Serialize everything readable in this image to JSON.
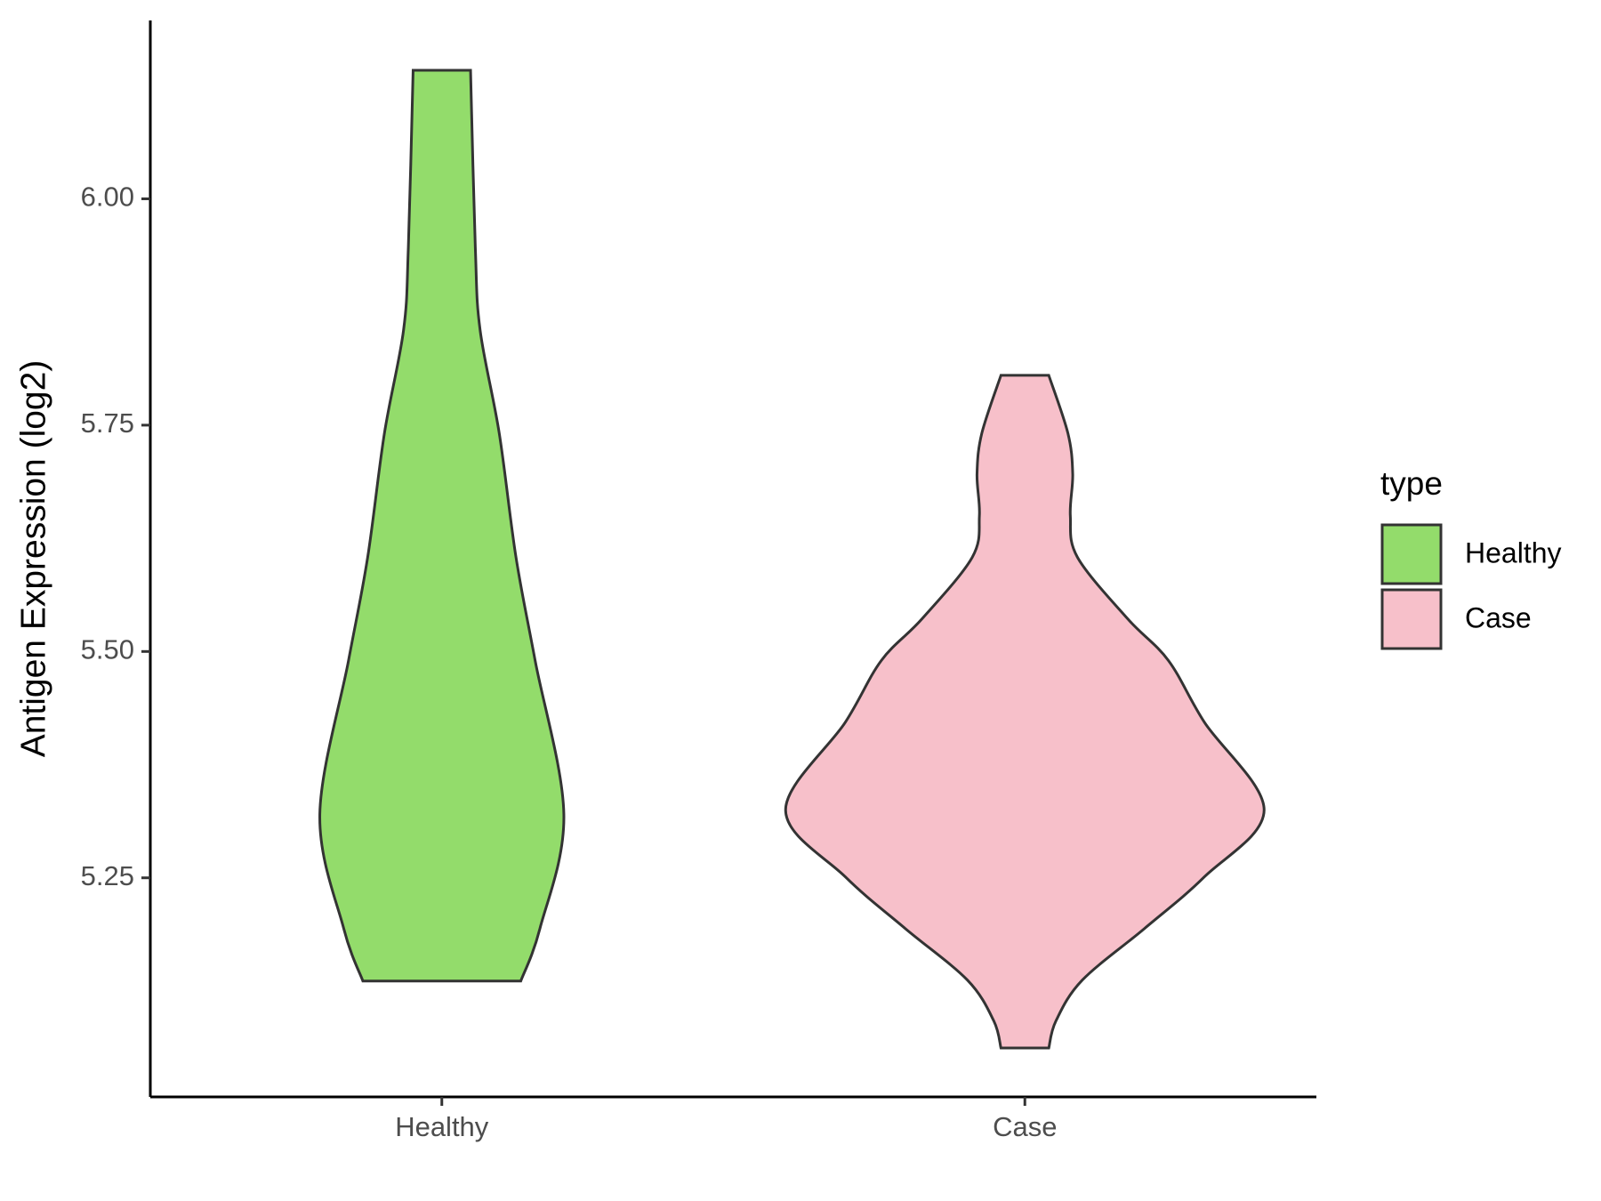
{
  "chart_data": {
    "type": "violin",
    "y_label": "Antigen Expression (log2)",
    "categories": [
      "Healthy",
      "Case"
    ],
    "legend_title": "type",
    "series": [
      {
        "name": "Healthy",
        "color": "#93dc6b",
        "y": [
          6.142,
          5.946,
          5.855,
          5.741,
          5.604,
          5.49,
          5.32,
          5.194,
          5.136
        ],
        "density": [
          0.12,
          0.14,
          0.16,
          0.24,
          0.31,
          0.39,
          0.51,
          0.41,
          0.33
        ]
      },
      {
        "name": "Case",
        "color": "#f7c0ca",
        "y": [
          5.805,
          5.741,
          5.696,
          5.65,
          5.604,
          5.536,
          5.49,
          5.422,
          5.325,
          5.251,
          5.194,
          5.137,
          5.092,
          5.062
        ],
        "density": [
          0.1,
          0.18,
          0.2,
          0.19,
          0.22,
          0.43,
          0.6,
          0.75,
          1.0,
          0.75,
          0.5,
          0.24,
          0.13,
          0.1
        ]
      }
    ],
    "ylim": [
      5.008,
      6.197
    ],
    "yticks": [
      {
        "value": 5.25,
        "label": "5.25"
      },
      {
        "value": 5.5,
        "label": "5.50"
      },
      {
        "value": 5.75,
        "label": "5.75"
      },
      {
        "value": 6,
        "label": "6.00"
      }
    ],
    "legend_position": "right"
  }
}
